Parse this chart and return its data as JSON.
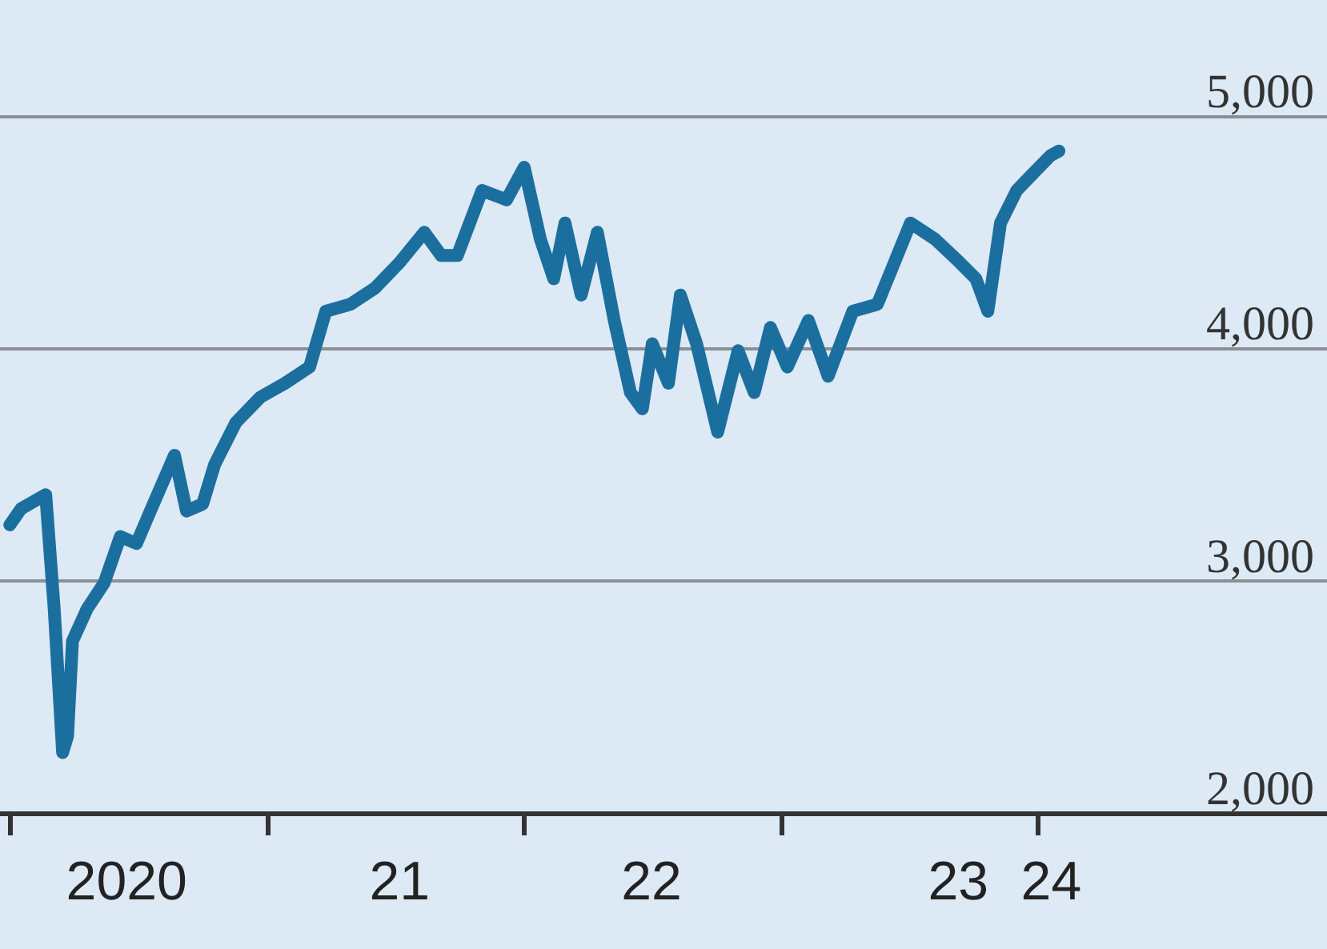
{
  "chart_data": {
    "type": "line",
    "x": [
      "2020-01-01",
      "2020-01-17",
      "2020-02-09",
      "2020-02-21",
      "2020-03-04",
      "2020-03-16",
      "2020-03-23",
      "2020-03-30",
      "2020-04-20",
      "2020-05-14",
      "2020-06-06",
      "2020-06-29",
      "2020-07-23",
      "2020-08-22",
      "2020-09-08",
      "2020-10-01",
      "2020-10-18",
      "2020-11-17",
      "2020-12-22",
      "2021-01-26",
      "2021-03-02",
      "2021-03-25",
      "2021-04-29",
      "2021-06-03",
      "2021-07-08",
      "2021-08-12",
      "2021-09-05",
      "2021-09-28",
      "2021-11-02",
      "2021-12-07",
      "2022-01-01",
      "2022-01-24",
      "2022-02-12",
      "2022-02-28",
      "2022-03-23",
      "2022-04-15",
      "2022-05-09",
      "2022-06-01",
      "2022-06-18",
      "2022-07-02",
      "2022-07-25",
      "2022-08-11",
      "2022-09-03",
      "2022-10-03",
      "2022-11-01",
      "2022-11-24",
      "2022-12-17",
      "2023-01-10",
      "2023-02-09",
      "2023-03-09",
      "2023-04-13",
      "2023-05-18",
      "2023-07-04",
      "2023-08-08",
      "2023-09-12",
      "2023-10-05",
      "2023-10-22",
      "2023-11-09",
      "2023-12-02",
      "2023-12-21",
      "2024-01-19",
      "2024-01-31"
    ],
    "series": [
      {
        "color": "#1b6f9e",
        "values": [
          3240,
          3310,
          3350,
          3370,
          2880,
          2260,
          2330,
          2740,
          2880,
          2990,
          3190,
          3160,
          3330,
          3540,
          3300,
          3330,
          3500,
          3680,
          3790,
          3850,
          3920,
          4160,
          4190,
          4260,
          4370,
          4500,
          4400,
          4400,
          4680,
          4640,
          4780,
          4470,
          4300,
          4540,
          4230,
          4500,
          4120,
          3810,
          3740,
          4020,
          3850,
          4230,
          4020,
          3640,
          3990,
          3810,
          4090,
          3920,
          4120,
          3880,
          4160,
          4190,
          4540,
          4470,
          4370,
          4300,
          4160,
          4540,
          4680,
          4740,
          4830,
          4850
        ]
      }
    ],
    "xlim": [
      "2019-12-18",
      "2025-02-15"
    ],
    "xticks": [
      {
        "value": "2020-01-01",
        "label": null
      },
      {
        "value": "2021-01-01",
        "label": null
      },
      {
        "value": "2022-01-01",
        "label": null
      },
      {
        "value": "2023-01-01",
        "label": null
      },
      {
        "value": "2024-01-01",
        "label": null
      },
      {
        "value": "2020-06-15",
        "label": "2020"
      },
      {
        "value": "2021-07-08",
        "label": "21"
      },
      {
        "value": "2022-07-01",
        "label": "22"
      },
      {
        "value": "2023-09-10",
        "label": "23"
      },
      {
        "value": "2024-01-20",
        "label": "24"
      }
    ],
    "ylim": [
      2000,
      5500
    ],
    "yticks": [
      {
        "value": 2000,
        "label": "2,000"
      },
      {
        "value": 3000,
        "label": "3,000"
      },
      {
        "value": 4000,
        "label": "4,000"
      },
      {
        "value": 5000,
        "label": "5,000"
      }
    ],
    "grid": "y",
    "line_style": "solid"
  }
}
